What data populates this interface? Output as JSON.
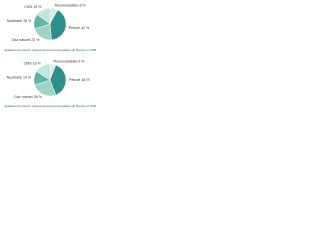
{
  "chart_data": [
    {
      "type": "pie",
      "title": "répartition des sources d'approvisionnement énergétique de l'Europe en 1998",
      "categories": [
        "Renouvelables",
        "Pétrole",
        "Gaz naturel",
        "Nucléaire",
        "CMS"
      ],
      "values": [
        8,
        41,
        22,
        15,
        15
      ],
      "value_labels": [
        "8 %",
        "41 %",
        "22 %",
        "15 %",
        "15 %"
      ],
      "colors": [
        "#d9efe6",
        "#2f8f8a",
        "#9fd3c7",
        "#5fb3a8",
        "#c3e4da"
      ]
    },
    {
      "type": "pie",
      "title": "répartition des sources d'approvisionnement énergétique de l'Europe en 2030",
      "categories": [
        "Renouvelables",
        "Pétrole",
        "Gaz naturel",
        "Nucléaire",
        "CMS"
      ],
      "values": [
        6,
        38,
        26,
        14,
        16
      ],
      "value_labels": [
        "6 %",
        "38 %",
        "26 %",
        "14 %",
        "16 %"
      ],
      "colors": [
        "#d9efe6",
        "#2f8f8a",
        "#9fd3c7",
        "#5fb3a8",
        "#c3e4da"
      ]
    }
  ]
}
